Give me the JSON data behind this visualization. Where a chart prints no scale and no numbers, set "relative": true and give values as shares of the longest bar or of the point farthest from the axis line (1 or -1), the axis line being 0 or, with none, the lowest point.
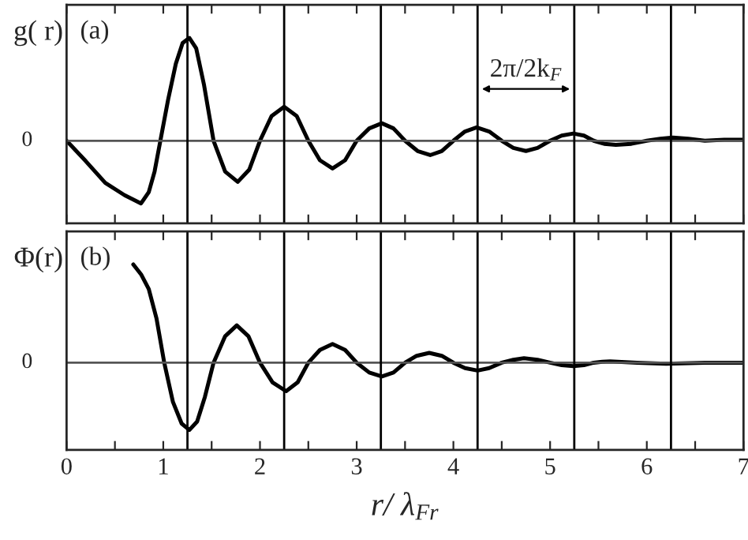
{
  "chart_data": [
    {
      "type": "line",
      "relative": true,
      "ylabel": "g( r)",
      "xlim": [
        0,
        7
      ],
      "tick_labels": false,
      "xticks": [
        0,
        {
          "value": 0.5,
          "label": null
        },
        1,
        {
          "value": 1.5,
          "label": null
        },
        2,
        {
          "value": 2.5,
          "label": null
        },
        3,
        {
          "value": 3.5,
          "label": null
        },
        4,
        {
          "value": 4.5,
          "label": null
        },
        5,
        {
          "value": 5.5,
          "label": null
        },
        6,
        {
          "value": 6.5,
          "label": null
        },
        7
      ],
      "series": [
        {
          "color": "#000000",
          "x": [
            0,
            0.2,
            0.4,
            0.6,
            0.77,
            0.85,
            0.91,
            0.97,
            1.05,
            1.13,
            1.2,
            1.27,
            1.34,
            1.42,
            1.52,
            1.64,
            1.77,
            1.89,
            2.0,
            2.12,
            2.25,
            2.38,
            2.5,
            2.62,
            2.75,
            2.88,
            3.0,
            3.13,
            3.26,
            3.38,
            3.5,
            3.63,
            3.76,
            3.88,
            4.0,
            4.12,
            4.24,
            4.37,
            4.5,
            4.62,
            4.75,
            4.87,
            5.0,
            5.12,
            5.24,
            5.35,
            5.45,
            5.56,
            5.68,
            5.84,
            6.0,
            6.14,
            6.27,
            6.43,
            6.6,
            6.8,
            7
          ],
          "values": [
            0,
            -0.2,
            -0.41,
            -0.53,
            -0.61,
            -0.5,
            -0.3,
            0,
            0.4,
            0.75,
            0.95,
            1.0,
            0.9,
            0.55,
            0,
            -0.3,
            -0.4,
            -0.28,
            0,
            0.24,
            0.33,
            0.24,
            0,
            -0.19,
            -0.27,
            -0.19,
            0,
            0.12,
            0.17,
            0.12,
            0,
            -0.1,
            -0.14,
            -0.1,
            0,
            0.09,
            0.13,
            0.09,
            0,
            -0.07,
            -0.1,
            -0.07,
            0,
            0.05,
            0.07,
            0.05,
            0,
            -0.03,
            -0.04,
            -0.03,
            0,
            0.02,
            0.03,
            0.02,
            0,
            0.01,
            0.01
          ]
        }
      ],
      "ref_lines": [
        {
          "axis": "y",
          "value": 0,
          "label": "0",
          "color": "#555555"
        },
        {
          "axis": "x",
          "value": 1.25,
          "color": "#000000"
        },
        {
          "axis": "x",
          "value": 2.25,
          "color": "#000000"
        },
        {
          "axis": "x",
          "value": 3.25,
          "color": "#000000"
        },
        {
          "axis": "x",
          "value": 4.25,
          "color": "#000000"
        },
        {
          "axis": "x",
          "value": 5.25,
          "color": "#000000"
        },
        {
          "axis": "x",
          "value": 6.25,
          "color": "#000000"
        }
      ],
      "annotations": [
        "(a)",
        "2π/2k$_{F}$"
      ],
      "grid": false,
      "legend": false,
      "line_style": "solid",
      "marker": "none"
    },
    {
      "type": "line",
      "relative": true,
      "ylabel": "Φ(r)",
      "xlabel": "r/ λ$_{Fr}$",
      "xlim": [
        0,
        7
      ],
      "tick_labels": "x",
      "xticks": [
        0,
        {
          "value": 0.5,
          "label": null
        },
        1,
        {
          "value": 1.5,
          "label": null
        },
        2,
        {
          "value": 2.5,
          "label": null
        },
        3,
        {
          "value": 3.5,
          "label": null
        },
        4,
        {
          "value": 4.5,
          "label": null
        },
        5,
        {
          "value": 5.5,
          "label": null
        },
        6,
        {
          "value": 6.5,
          "label": null
        },
        7
      ],
      "series": [
        {
          "color": "#000000",
          "x": [
            0.69,
            0.77,
            0.85,
            0.93,
            1.01,
            1.1,
            1.19,
            1.27,
            1.35,
            1.43,
            1.52,
            1.64,
            1.76,
            1.88,
            2.0,
            2.13,
            2.27,
            2.39,
            2.5,
            2.62,
            2.75,
            2.88,
            3.0,
            3.13,
            3.26,
            3.38,
            3.5,
            3.62,
            3.75,
            3.88,
            4.0,
            4.12,
            4.25,
            4.37,
            4.5,
            4.62,
            4.73,
            4.87,
            5.0,
            5.12,
            5.24,
            5.35,
            5.45,
            5.54,
            5.62,
            5.9,
            6.2,
            6.6,
            7
          ],
          "values": [
            1.0,
            0.9,
            0.75,
            0.45,
            0,
            -0.4,
            -0.62,
            -0.685,
            -0.6,
            -0.35,
            0,
            0.27,
            0.38,
            0.27,
            0,
            -0.2,
            -0.29,
            -0.2,
            0,
            0.13,
            0.19,
            0.13,
            0,
            -0.1,
            -0.14,
            -0.1,
            0,
            0.07,
            0.1,
            0.07,
            0,
            -0.055,
            -0.08,
            -0.055,
            0,
            0.03,
            0.045,
            0.03,
            0,
            -0.025,
            -0.035,
            -0.025,
            0,
            0.01,
            0.014,
            0,
            -0.01,
            0,
            0
          ]
        }
      ],
      "ref_lines": [
        {
          "axis": "y",
          "value": 0,
          "label": "0",
          "color": "#555555"
        },
        {
          "axis": "x",
          "value": 1.25,
          "color": "#000000"
        },
        {
          "axis": "x",
          "value": 2.25,
          "color": "#000000"
        },
        {
          "axis": "x",
          "value": 3.25,
          "color": "#000000"
        },
        {
          "axis": "x",
          "value": 4.25,
          "color": "#000000"
        },
        {
          "axis": "x",
          "value": 5.25,
          "color": "#000000"
        },
        {
          "axis": "x",
          "value": 6.25,
          "color": "#000000"
        }
      ],
      "annotations": [
        "(b)"
      ],
      "grid": false,
      "legend": false,
      "line_style": "solid",
      "marker": "none"
    }
  ]
}
